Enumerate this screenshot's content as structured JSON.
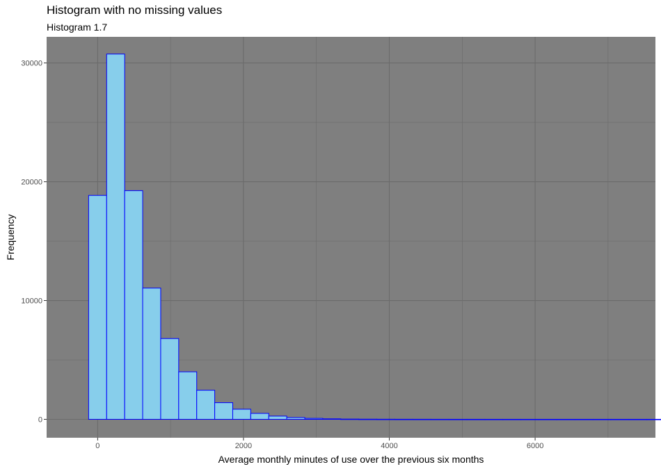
{
  "chart_data": {
    "type": "bar",
    "title": "Histogram with no missing values",
    "subtitle": "Histogram 1.7",
    "xlabel": "Average monthly minutes of use over the previous six months",
    "ylabel": "Frequency",
    "xlim": [
      -700,
      7650
    ],
    "ylim": [
      -1550,
      32200
    ],
    "x_ticks": [
      0,
      2000,
      4000,
      6000
    ],
    "y_ticks": [
      0,
      10000,
      20000,
      30000
    ],
    "grid": true,
    "bin_width": 247,
    "bins_start": -123.5,
    "values": [
      18850,
      30750,
      19250,
      11050,
      6800,
      4000,
      2450,
      1400,
      850,
      500,
      270,
      150,
      80,
      40,
      20,
      12,
      8,
      5,
      4,
      3,
      2,
      2,
      1,
      1,
      1,
      1,
      1,
      1,
      1,
      1,
      1,
      1
    ],
    "colors": {
      "panel": "#7f7f7f",
      "grid": "#6b6b6b",
      "bar_fill": "#87ceeb",
      "bar_stroke": "#0000ff"
    }
  }
}
